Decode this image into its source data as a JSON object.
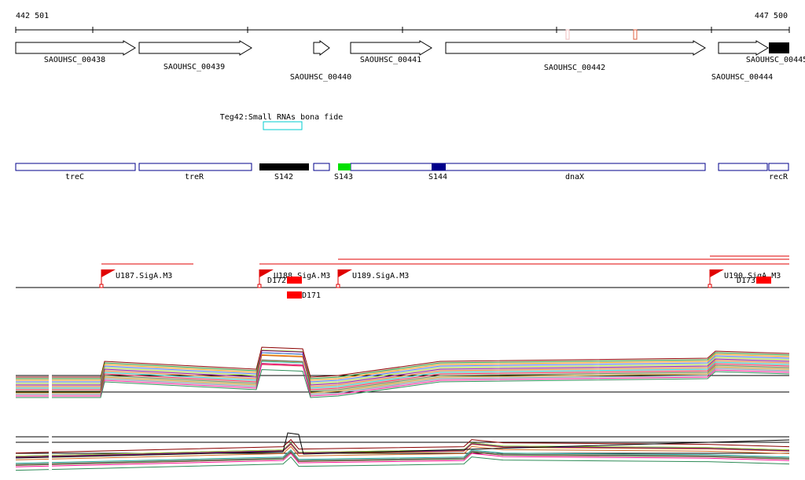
{
  "ruler": {
    "start": "442 501",
    "end": "447 500"
  },
  "genes": [
    "SAOUHSC_00438",
    "SAOUHSC_00439",
    "SAOUHSC_00440",
    "SAOUHSC_00441",
    "SAOUHSC_00442",
    "SAOUHSC_00444",
    "SAOUHSC_00445"
  ],
  "srna": "Teg42:Small RNAs bona fide",
  "features": [
    "treC",
    "treR",
    "S142",
    "S143",
    "S144",
    "dnaX",
    "recR"
  ],
  "promoters": [
    "U187.SigA.M3",
    "U188.SigA.M3",
    "U189.SigA.M3",
    "U190.SigA.M3"
  ],
  "terminators": [
    "D172",
    "D171",
    "D173"
  ]
}
